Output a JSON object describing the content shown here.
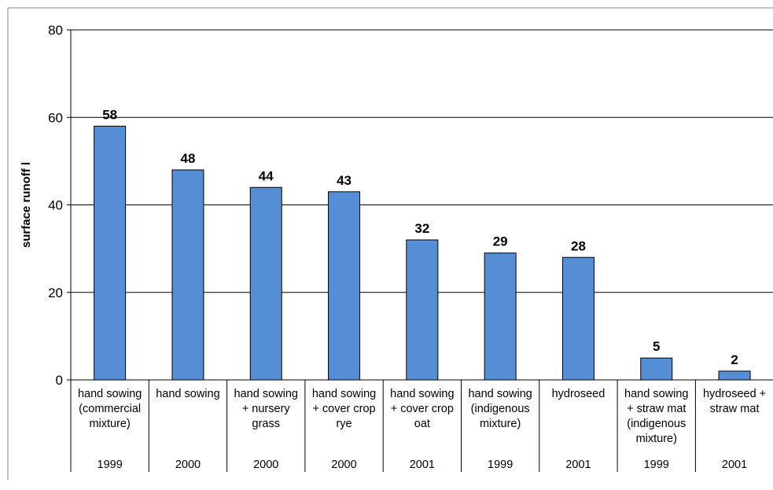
{
  "chart_data": {
    "type": "bar",
    "title": "",
    "xlabel": "",
    "ylabel": "surface runoff l",
    "ylim": [
      0,
      80
    ],
    "yticks": [
      0,
      20,
      40,
      60,
      80
    ],
    "grid": true,
    "bar_color": "#558ed5",
    "categories": [
      {
        "label": [
          "hand sowing",
          "(commercial",
          "mixture)"
        ],
        "year": "1999",
        "value": 58
      },
      {
        "label": [
          "hand sowing"
        ],
        "year": "2000",
        "value": 48
      },
      {
        "label": [
          "hand sowing",
          "+ nursery",
          "grass"
        ],
        "year": "2000",
        "value": 44
      },
      {
        "label": [
          "hand sowing",
          "+ cover crop",
          "rye"
        ],
        "year": "2000",
        "value": 43
      },
      {
        "label": [
          "hand sowing",
          "+ cover crop",
          "oat"
        ],
        "year": "2001",
        "value": 32
      },
      {
        "label": [
          "hand sowing",
          "(indigenous",
          "mixture)"
        ],
        "year": "1999",
        "value": 29
      },
      {
        "label": [
          "hydroseed"
        ],
        "year": "2001",
        "value": 28
      },
      {
        "label": [
          "hand sowing",
          "+ straw mat",
          "(indigenous",
          "mixture)"
        ],
        "year": "1999",
        "value": 5
      },
      {
        "label": [
          "hydroseed +",
          "straw mat"
        ],
        "year": "2001",
        "value": 2
      }
    ]
  }
}
